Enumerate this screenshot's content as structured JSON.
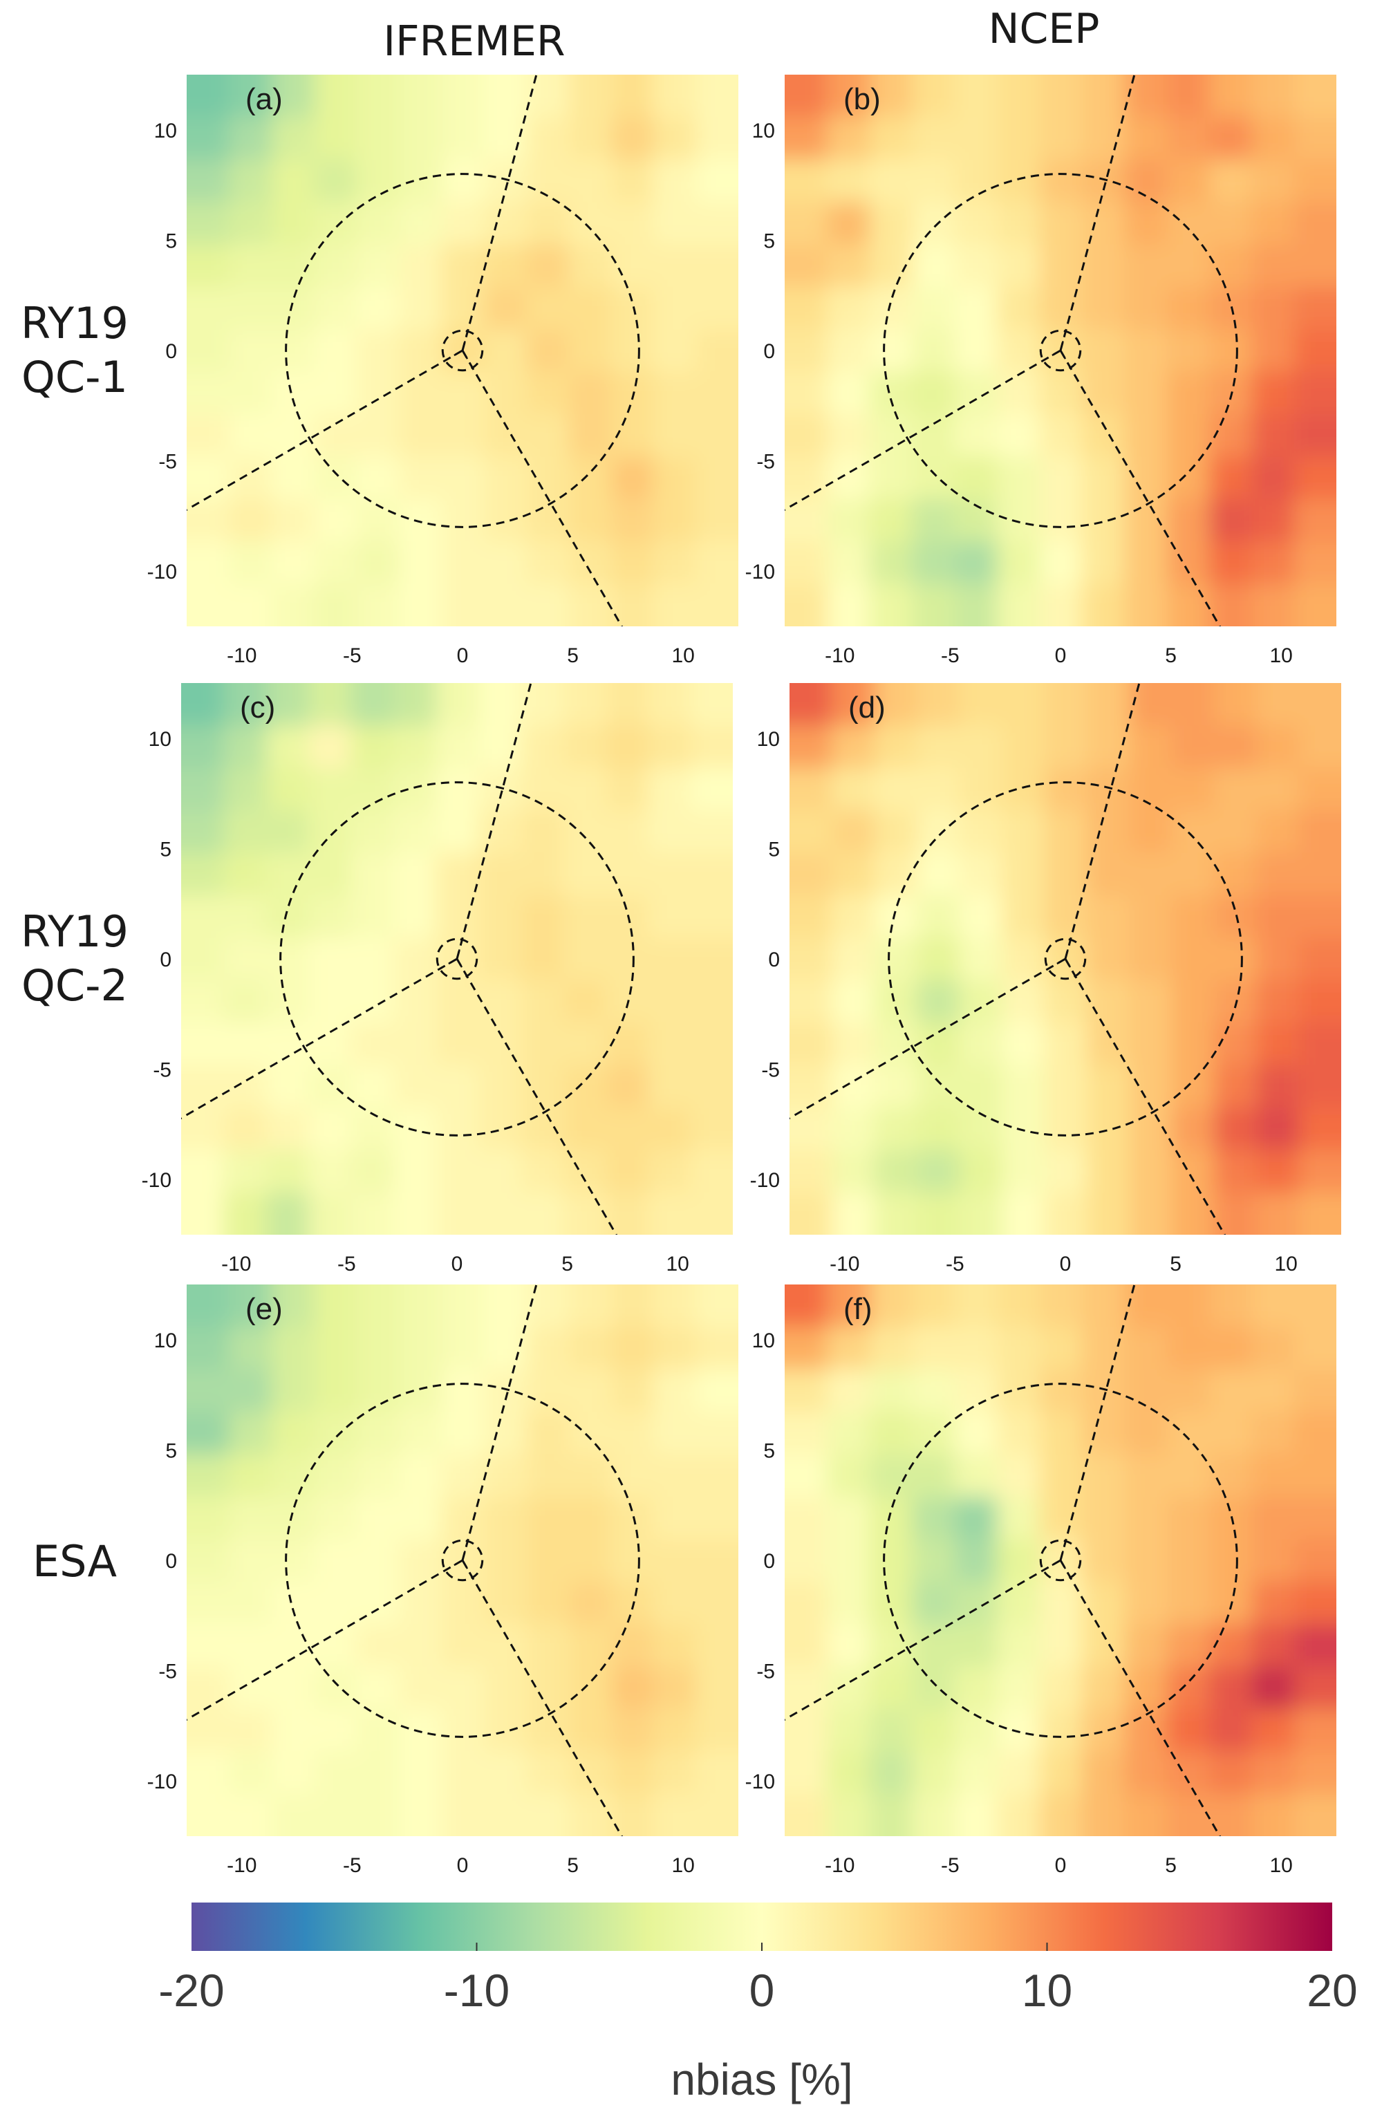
{
  "chart_data": {
    "type": "heatmap",
    "figure": {
      "column_titles": [
        "IFREMER",
        "NCEP"
      ],
      "row_titles": [
        [
          "RY19",
          "QC-1"
        ],
        [
          "RY19",
          "QC-2"
        ],
        [
          "ESA"
        ]
      ]
    },
    "colorbar": {
      "label": "nbias [%]",
      "range": [
        -20,
        20
      ],
      "ticks": [
        "-20",
        "-10",
        "0",
        "10",
        "20"
      ],
      "colormap": [
        "#5e4fa2",
        "#3288bd",
        "#66c2a5",
        "#abdda4",
        "#e6f598",
        "#ffffbf",
        "#fee08b",
        "#fdae61",
        "#f46d43",
        "#d53e4f",
        "#9e0142"
      ]
    },
    "axes": {
      "xlim": [
        -12.5,
        12.5
      ],
      "ylim": [
        -12.5,
        12.5
      ],
      "x_ticks": [
        "-10",
        "-5",
        "0",
        "5",
        "10"
      ],
      "y_ticks": [
        "10",
        "5",
        "0",
        "-5",
        "-10"
      ],
      "overlay": {
        "outer_circle_radius": 8,
        "inner_circle_radius": 0.9,
        "sector_line_angles_deg": [
          75,
          210,
          300
        ]
      }
    },
    "panels": [
      {
        "label": "(a)",
        "model": "IFREMER",
        "dataset": "RY19 QC-1",
        "nbias_grid": [
          [
            -11,
            -10,
            -7,
            -4,
            -3,
            -2,
            -1,
            0,
            1,
            3,
            4,
            2,
            1
          ],
          [
            -10,
            -8,
            -5,
            -4,
            -3,
            -2,
            -1,
            0,
            2,
            3,
            5,
            3,
            1
          ],
          [
            -8,
            -6,
            -4,
            -5,
            -3,
            -2,
            0,
            1,
            2,
            2,
            3,
            1,
            0
          ],
          [
            -6,
            -5,
            -4,
            -3,
            -2,
            -1,
            1,
            2,
            3,
            2,
            2,
            1,
            1
          ],
          [
            -4,
            -3,
            -3,
            -2,
            -1,
            1,
            3,
            4,
            5,
            3,
            2,
            2,
            2
          ],
          [
            -2,
            -2,
            -2,
            -1,
            0,
            1,
            3,
            5,
            4,
            4,
            3,
            2,
            2
          ],
          [
            -2,
            -1,
            -1,
            0,
            1,
            2,
            4,
            3,
            5,
            4,
            3,
            2,
            3
          ],
          [
            -1,
            -1,
            0,
            0,
            1,
            2,
            2,
            3,
            4,
            5,
            4,
            3,
            3
          ],
          [
            1,
            0,
            0,
            1,
            1,
            2,
            2,
            3,
            3,
            5,
            4,
            3,
            3
          ],
          [
            0,
            1,
            0,
            -1,
            0,
            1,
            1,
            2,
            3,
            4,
            6,
            4,
            3
          ],
          [
            1,
            2,
            1,
            0,
            -1,
            0,
            1,
            2,
            3,
            4,
            5,
            4,
            3
          ],
          [
            0,
            -1,
            0,
            -1,
            -2,
            0,
            1,
            1,
            2,
            3,
            4,
            3,
            2
          ],
          [
            0,
            0,
            -1,
            -2,
            -1,
            0,
            1,
            1,
            1,
            2,
            3,
            2,
            2
          ]
        ]
      },
      {
        "label": "(b)",
        "model": "NCEP",
        "dataset": "RY19 QC-1",
        "nbias_grid": [
          [
            11,
            9,
            6,
            4,
            3,
            4,
            5,
            6,
            9,
            10,
            8,
            7,
            6
          ],
          [
            9,
            6,
            4,
            3,
            3,
            4,
            5,
            6,
            8,
            9,
            10,
            8,
            7
          ],
          [
            4,
            3,
            2,
            2,
            3,
            4,
            6,
            7,
            9,
            8,
            6,
            7,
            8
          ],
          [
            5,
            7,
            3,
            1,
            2,
            3,
            5,
            6,
            8,
            7,
            7,
            8,
            9
          ],
          [
            6,
            5,
            3,
            0,
            1,
            2,
            5,
            6,
            7,
            7,
            8,
            9,
            9
          ],
          [
            4,
            2,
            1,
            -1,
            0,
            3,
            5,
            6,
            7,
            8,
            9,
            10,
            11
          ],
          [
            3,
            1,
            0,
            -2,
            0,
            2,
            4,
            5,
            6,
            7,
            8,
            10,
            12
          ],
          [
            2,
            0,
            -3,
            -4,
            -2,
            1,
            3,
            5,
            6,
            8,
            9,
            12,
            13
          ],
          [
            3,
            1,
            -2,
            -3,
            -1,
            0,
            2,
            4,
            6,
            8,
            10,
            13,
            14
          ],
          [
            2,
            0,
            -2,
            -3,
            -4,
            -2,
            1,
            3,
            6,
            8,
            12,
            14,
            12
          ],
          [
            1,
            -2,
            -4,
            -6,
            -5,
            -2,
            1,
            3,
            6,
            9,
            14,
            13,
            10
          ],
          [
            2,
            -1,
            -5,
            -7,
            -8,
            -3,
            0,
            3,
            6,
            9,
            12,
            11,
            9
          ],
          [
            3,
            0,
            -3,
            -5,
            -6,
            -2,
            1,
            4,
            6,
            8,
            10,
            9,
            8
          ]
        ]
      },
      {
        "label": "(c)",
        "model": "IFREMER",
        "dataset": "RY19 QC-2",
        "nbias_grid": [
          [
            -11,
            -9,
            -7,
            -5,
            -7,
            -6,
            -2,
            0,
            1,
            2,
            3,
            2,
            1
          ],
          [
            -9,
            -7,
            -3,
            1,
            -4,
            -3,
            -1,
            0,
            2,
            3,
            4,
            3,
            2
          ],
          [
            -8,
            -6,
            -4,
            -3,
            -3,
            -2,
            0,
            1,
            2,
            2,
            3,
            1,
            0
          ],
          [
            -7,
            -5,
            -5,
            -3,
            -2,
            -1,
            0,
            2,
            3,
            2,
            2,
            1,
            1
          ],
          [
            -5,
            -4,
            -3,
            -3,
            -1,
            0,
            2,
            3,
            3,
            2,
            2,
            2,
            2
          ],
          [
            -2,
            -2,
            -3,
            -2,
            -1,
            0,
            2,
            3,
            4,
            3,
            3,
            2,
            2
          ],
          [
            -2,
            -1,
            -1,
            0,
            0,
            1,
            2,
            3,
            4,
            3,
            3,
            3,
            3
          ],
          [
            -1,
            -2,
            -1,
            0,
            0,
            1,
            2,
            2,
            3,
            4,
            3,
            3,
            3
          ],
          [
            0,
            0,
            0,
            0,
            1,
            1,
            2,
            2,
            3,
            3,
            4,
            3,
            3
          ],
          [
            1,
            1,
            0,
            -1,
            0,
            1,
            1,
            2,
            3,
            4,
            5,
            3,
            3
          ],
          [
            1,
            2,
            1,
            0,
            -1,
            0,
            1,
            2,
            3,
            4,
            4,
            4,
            3
          ],
          [
            0,
            -2,
            -3,
            -1,
            -2,
            0,
            1,
            1,
            2,
            3,
            4,
            3,
            2
          ],
          [
            0,
            -4,
            -6,
            -2,
            -1,
            0,
            1,
            1,
            1,
            2,
            3,
            2,
            2
          ]
        ]
      },
      {
        "label": "(d)",
        "model": "NCEP",
        "dataset": "RY19 QC-2",
        "nbias_grid": [
          [
            13,
            10,
            6,
            5,
            4,
            4,
            5,
            6,
            9,
            9,
            8,
            7,
            7
          ],
          [
            9,
            6,
            4,
            3,
            3,
            4,
            5,
            6,
            8,
            9,
            9,
            8,
            7
          ],
          [
            5,
            3,
            2,
            2,
            3,
            4,
            6,
            7,
            8,
            8,
            7,
            7,
            8
          ],
          [
            4,
            5,
            3,
            1,
            2,
            3,
            5,
            7,
            8,
            7,
            7,
            8,
            9
          ],
          [
            5,
            4,
            2,
            0,
            1,
            3,
            5,
            7,
            7,
            7,
            8,
            9,
            9
          ],
          [
            4,
            2,
            0,
            -2,
            0,
            3,
            5,
            6,
            7,
            8,
            9,
            10,
            10
          ],
          [
            3,
            1,
            -2,
            -4,
            -1,
            2,
            4,
            6,
            7,
            8,
            8,
            10,
            11
          ],
          [
            2,
            0,
            -3,
            -6,
            -3,
            1,
            3,
            5,
            6,
            8,
            9,
            11,
            12
          ],
          [
            3,
            1,
            -2,
            -4,
            -2,
            0,
            2,
            5,
            6,
            8,
            10,
            12,
            13
          ],
          [
            2,
            0,
            -1,
            -3,
            -3,
            -1,
            2,
            4,
            6,
            8,
            11,
            14,
            13
          ],
          [
            1,
            -1,
            -3,
            -4,
            -3,
            -1,
            2,
            4,
            6,
            9,
            13,
            15,
            12
          ],
          [
            2,
            -2,
            -5,
            -6,
            -4,
            -1,
            1,
            4,
            6,
            8,
            11,
            12,
            10
          ],
          [
            3,
            0,
            -3,
            -4,
            -3,
            0,
            2,
            4,
            6,
            8,
            10,
            9,
            8
          ]
        ]
      },
      {
        "label": "(e)",
        "model": "IFREMER",
        "dataset": "ESA",
        "nbias_grid": [
          [
            -10,
            -9,
            -6,
            -4,
            -3,
            -2,
            -1,
            0,
            1,
            2,
            3,
            2,
            1
          ],
          [
            -9,
            -7,
            -5,
            -4,
            -3,
            -2,
            -1,
            0,
            2,
            3,
            4,
            3,
            2
          ],
          [
            -8,
            -8,
            -5,
            -4,
            -3,
            -2,
            0,
            1,
            2,
            2,
            3,
            1,
            0
          ],
          [
            -9,
            -6,
            -4,
            -3,
            -2,
            -1,
            0,
            1,
            3,
            2,
            2,
            1,
            1
          ],
          [
            -5,
            -4,
            -3,
            -2,
            -1,
            0,
            1,
            2,
            3,
            3,
            2,
            2,
            2
          ],
          [
            -3,
            -2,
            -2,
            -1,
            0,
            0,
            2,
            3,
            4,
            4,
            3,
            2,
            2
          ],
          [
            -2,
            -1,
            -1,
            0,
            0,
            1,
            2,
            3,
            4,
            4,
            3,
            3,
            3
          ],
          [
            -1,
            -1,
            0,
            0,
            0,
            1,
            2,
            3,
            4,
            5,
            4,
            3,
            3
          ],
          [
            0,
            0,
            0,
            0,
            1,
            1,
            2,
            2,
            3,
            4,
            5,
            4,
            3
          ],
          [
            1,
            0,
            0,
            -1,
            0,
            1,
            1,
            2,
            3,
            4,
            6,
            5,
            3
          ],
          [
            1,
            1,
            0,
            0,
            -1,
            0,
            1,
            2,
            3,
            4,
            5,
            4,
            3
          ],
          [
            0,
            -1,
            0,
            -1,
            -1,
            0,
            1,
            1,
            2,
            3,
            4,
            3,
            2
          ],
          [
            0,
            0,
            -1,
            -1,
            -1,
            0,
            1,
            1,
            1,
            2,
            3,
            2,
            2
          ]
        ]
      },
      {
        "label": "(f)",
        "model": "NCEP",
        "dataset": "ESA",
        "nbias_grid": [
          [
            12,
            9,
            5,
            4,
            3,
            4,
            5,
            6,
            8,
            8,
            7,
            6,
            6
          ],
          [
            8,
            5,
            3,
            2,
            2,
            3,
            4,
            6,
            7,
            8,
            8,
            7,
            6
          ],
          [
            3,
            1,
            -2,
            -1,
            1,
            3,
            5,
            6,
            7,
            7,
            6,
            6,
            7
          ],
          [
            1,
            -2,
            -4,
            -3,
            0,
            2,
            4,
            6,
            7,
            6,
            6,
            7,
            8
          ],
          [
            0,
            -3,
            -5,
            -5,
            -2,
            1,
            4,
            5,
            6,
            6,
            7,
            8,
            8
          ],
          [
            1,
            -1,
            -4,
            -7,
            -9,
            -2,
            4,
            5,
            6,
            7,
            8,
            9,
            9
          ],
          [
            1,
            -1,
            -4,
            -6,
            -8,
            -4,
            2,
            5,
            6,
            7,
            8,
            9,
            10
          ],
          [
            2,
            -1,
            -4,
            -7,
            -6,
            -3,
            1,
            4,
            6,
            7,
            8,
            11,
            12
          ],
          [
            2,
            0,
            -3,
            -5,
            -5,
            -2,
            1,
            4,
            7,
            9,
            11,
            14,
            16
          ],
          [
            1,
            -2,
            -4,
            -5,
            -3,
            -1,
            2,
            5,
            8,
            11,
            14,
            17,
            14
          ],
          [
            1,
            -3,
            -5,
            -4,
            -2,
            0,
            3,
            6,
            9,
            12,
            14,
            12,
            10
          ],
          [
            1,
            -4,
            -6,
            -3,
            -1,
            1,
            4,
            7,
            9,
            10,
            11,
            10,
            9
          ],
          [
            2,
            -3,
            -5,
            -2,
            0,
            2,
            5,
            7,
            8,
            9,
            9,
            8,
            7
          ]
        ]
      }
    ]
  }
}
